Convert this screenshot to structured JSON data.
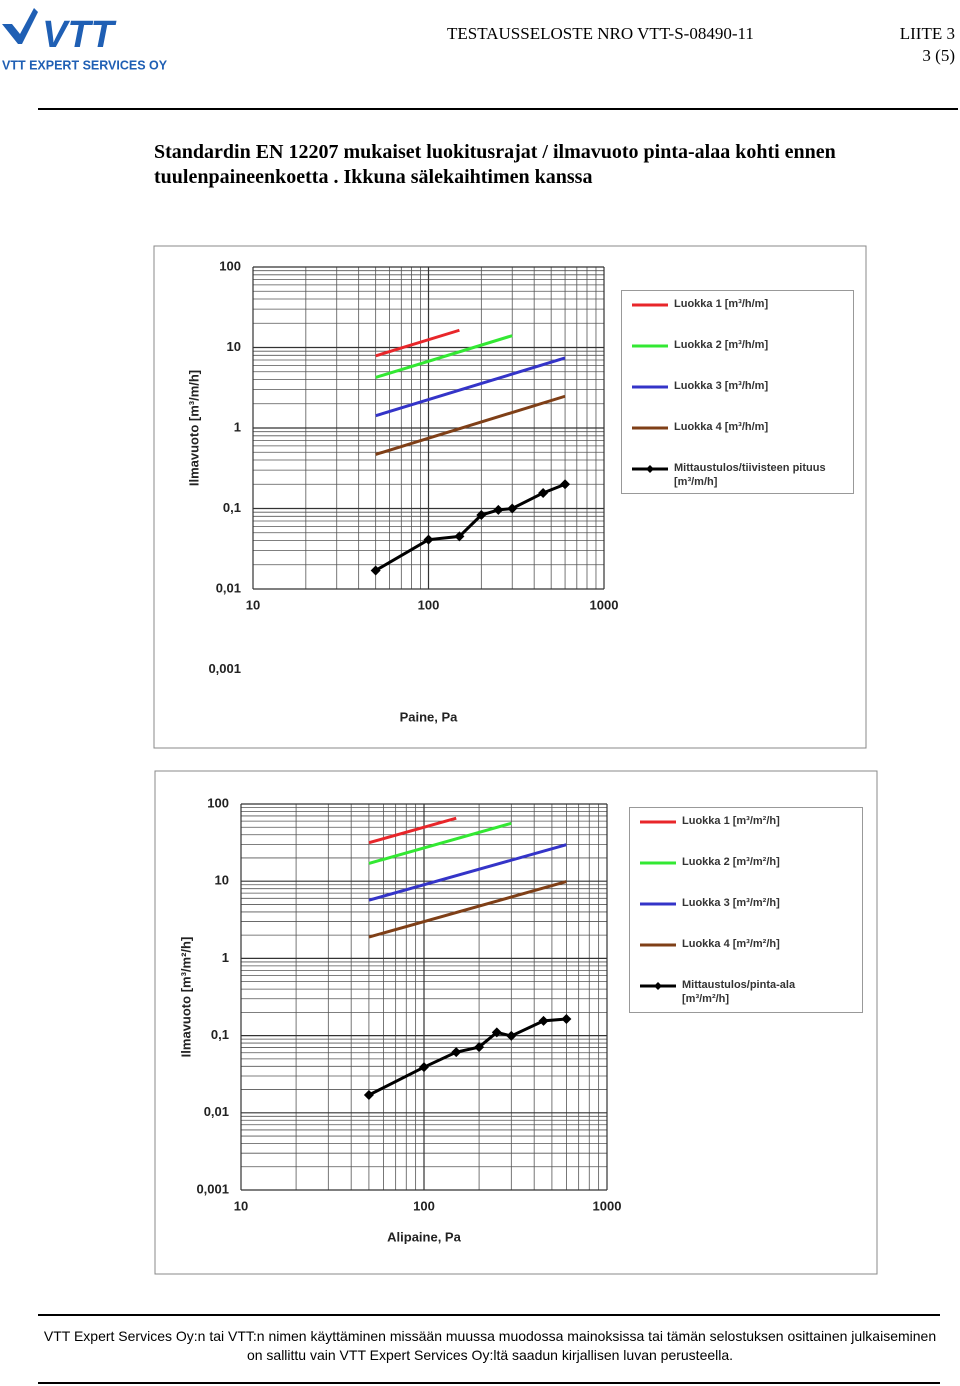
{
  "header": {
    "logo": "VTT",
    "company": "VTT EXPERT SERVICES OY",
    "report": "TESTAUSSELOSTE NRO VTT-S-08490-11",
    "appendix": "LIITE 3",
    "page": "3 (5)"
  },
  "heading": "Standardin EN 12207 mukaiset luokitusrajat / ilmavuoto pinta-alaa kohti ennen tuulenpaineenkoetta . Ikkuna sälekaihtimen kanssa",
  "chart_data": [
    {
      "type": "line",
      "log_x": true,
      "log_y": true,
      "grid": true,
      "legend": "right",
      "x_label": "Paine, Pa",
      "y_label": "Ilmavuoto [m³/m/h]",
      "xlim": [
        10,
        1000
      ],
      "ylim": [
        0.01,
        100
      ],
      "xticks": [
        10,
        100,
        1000
      ],
      "yticks": [
        100,
        10,
        1,
        {
          "value": 0.1,
          "label": "0,1"
        },
        {
          "value": 0.01,
          "label": "0,01"
        },
        {
          "value": 0.001,
          "label": "0,001"
        }
      ],
      "series": [
        {
          "name": "Luokka 1 [m³/h/m]",
          "color": "#e8262a",
          "x": [
            50,
            150
          ],
          "values": [
            7.87,
            16.38
          ]
        },
        {
          "name": "Luokka 2 [m³/h/m]",
          "color": "#33e833",
          "x": [
            50,
            300
          ],
          "values": [
            4.25,
            14.04
          ]
        },
        {
          "name": "Luokka 3 [m³/h/m]",
          "color": "#3434c8",
          "x": [
            50,
            600
          ],
          "values": [
            1.42,
            7.43
          ]
        },
        {
          "name": "Luokka 4 [m³/h/m]",
          "color": "#7f3f17",
          "x": [
            50,
            600
          ],
          "values": [
            0.47,
            2.48
          ]
        },
        {
          "name": "Mittaustulos/tiivisteen pituus [m³/m/h]",
          "color": "#000000",
          "marker": "diamond",
          "x": [
            50,
            100,
            150,
            200,
            250,
            300,
            450,
            600
          ],
          "values": [
            0.017,
            0.041,
            0.045,
            0.083,
            0.096,
            0.1,
            0.156,
            0.2
          ]
        }
      ]
    },
    {
      "type": "line",
      "log_x": true,
      "log_y": true,
      "grid": true,
      "legend": "right",
      "x_label": "Alipaine, Pa",
      "y_label": "Ilmavuoto [m³/m²/h]",
      "xlim": [
        10,
        1000
      ],
      "ylim": [
        0.001,
        100
      ],
      "xticks": [
        10,
        100,
        1000
      ],
      "yticks": [
        100,
        10,
        1,
        {
          "value": 0.1,
          "label": "0,1"
        },
        {
          "value": 0.01,
          "label": "0,01"
        },
        {
          "value": 0.001,
          "label": "0,001"
        }
      ],
      "series": [
        {
          "name": "Luokka 1  [m³/m²/h]",
          "color": "#e8262a",
          "x": [
            50,
            150
          ],
          "values": [
            31.5,
            65.5
          ]
        },
        {
          "name": "Luokka 2  [m³/m²/h]",
          "color": "#33e833",
          "x": [
            50,
            300
          ],
          "values": [
            17.0,
            56.2
          ]
        },
        {
          "name": "Luokka 3  [m³/m²/h]",
          "color": "#3434c8",
          "x": [
            50,
            600
          ],
          "values": [
            5.67,
            29.7
          ]
        },
        {
          "name": "Luokka 4  [m³/m²/h]",
          "color": "#7f3f17",
          "x": [
            50,
            600
          ],
          "values": [
            1.89,
            9.9
          ]
        },
        {
          "name": "Mittaustulos/pinta-ala [m³/m²/h]",
          "color": "#000000",
          "marker": "diamond",
          "x": [
            50,
            100,
            150,
            200,
            250,
            300,
            450,
            600
          ],
          "values": [
            0.017,
            0.039,
            0.061,
            0.071,
            0.11,
            0.099,
            0.155,
            0.164
          ]
        }
      ]
    }
  ],
  "footer": {
    "lines": [
      "VTT Expert Services Oy:n tai VTT:n nimen käyttäminen missään muussa muodossa mainoksissa tai tämän selostuksen osittainen julkaiseminen",
      "on sallittu vain VTT Expert Services Oy:ltä saadun kirjallisen luvan perusteella."
    ]
  }
}
